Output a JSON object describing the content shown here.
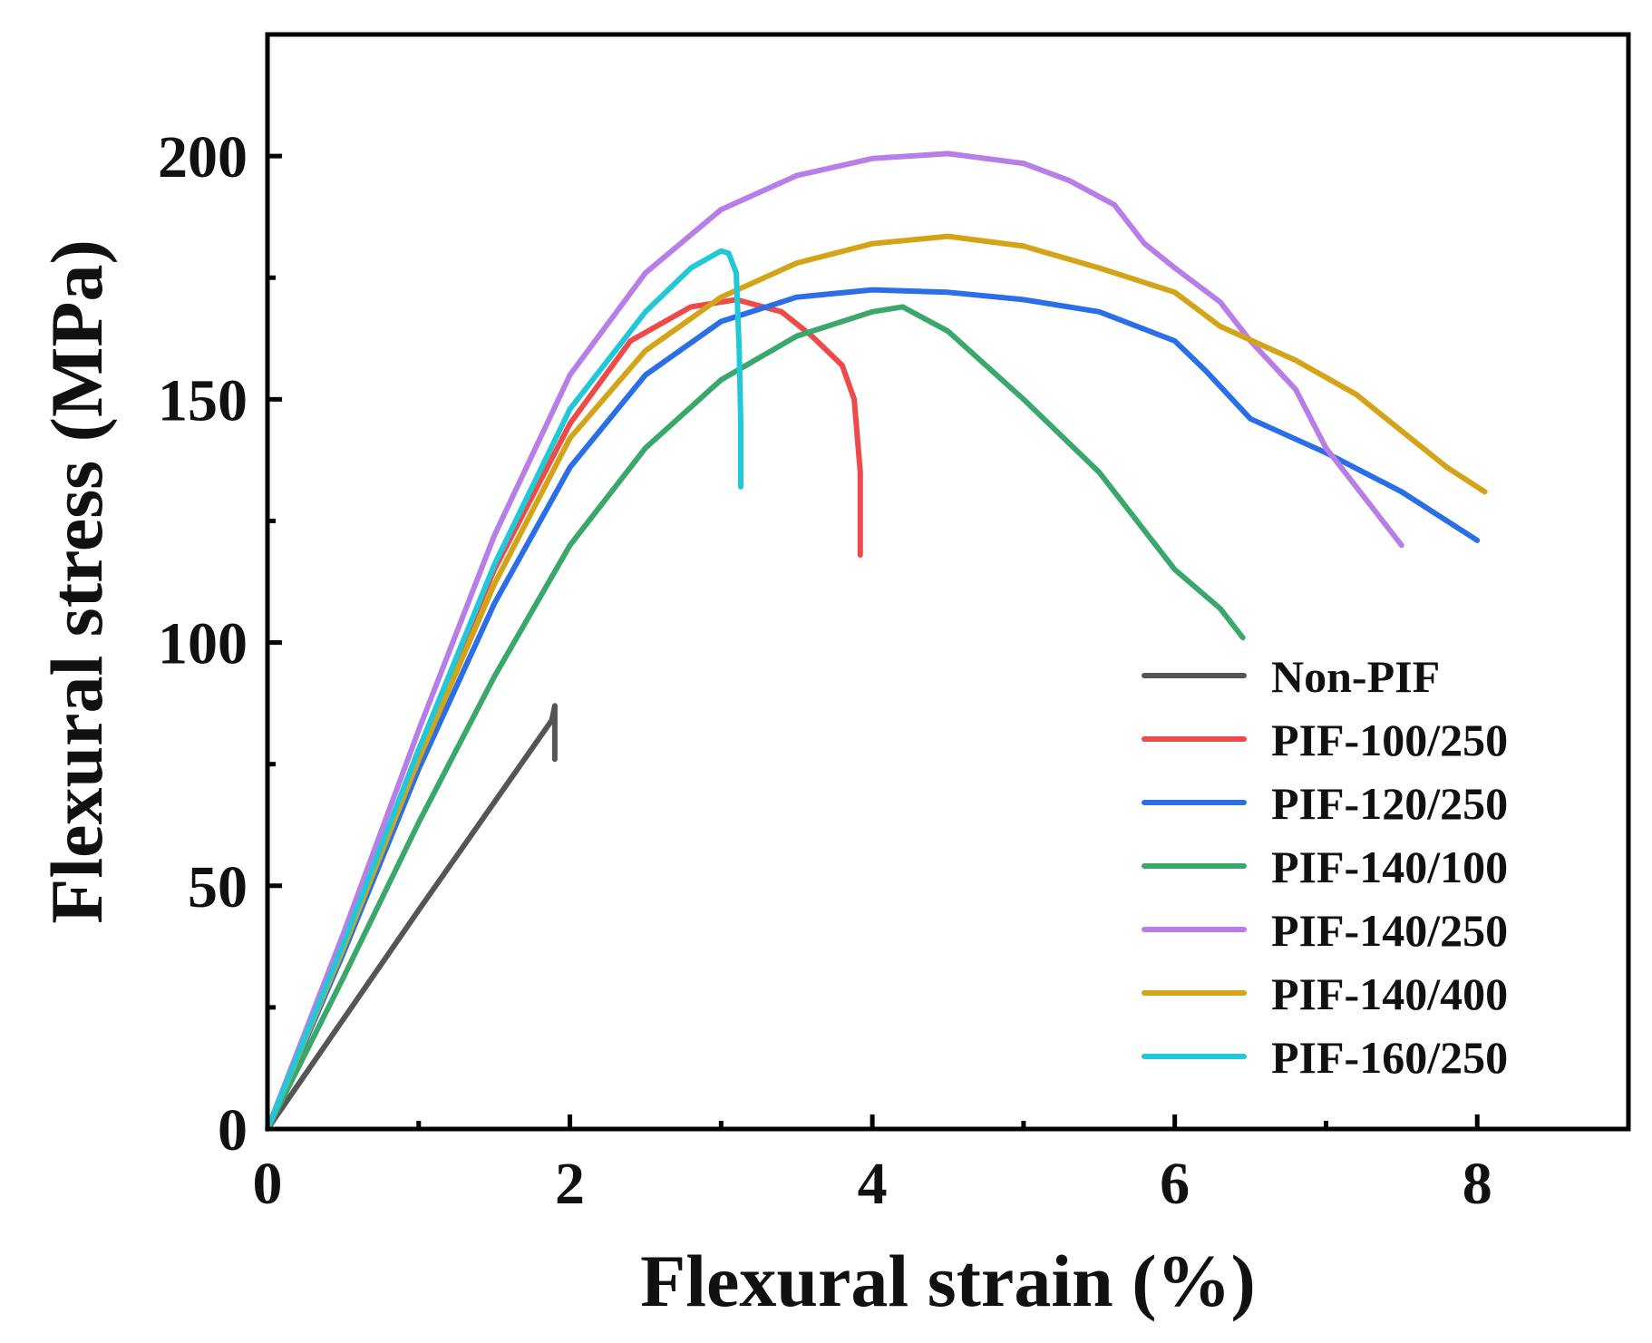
{
  "chart_data": {
    "type": "line",
    "title": "",
    "xlabel": "Flexural strain (%)",
    "ylabel": "Flexural stress (MPa)",
    "xlim": [
      0,
      9
    ],
    "ylim": [
      0,
      225
    ],
    "x_ticks": [
      0,
      2,
      4,
      6,
      8
    ],
    "y_ticks": [
      0,
      50,
      100,
      150,
      200
    ],
    "x_tick_labels": [
      "0",
      "2",
      "4",
      "6",
      "8"
    ],
    "y_tick_labels": [
      "0",
      "50",
      "100",
      "150",
      "200"
    ],
    "grid": false,
    "legend_position": "lower-right",
    "series": [
      {
        "name": "Non-PIF",
        "color": "#555555",
        "points": [
          [
            0,
            0
          ],
          [
            1.0,
            45
          ],
          [
            1.88,
            84
          ],
          [
            1.9,
            87
          ],
          [
            1.9,
            76
          ]
        ]
      },
      {
        "name": "PIF-100/250",
        "color": "#ef4a4a",
        "points": [
          [
            0,
            0
          ],
          [
            0.5,
            38
          ],
          [
            1.0,
            78
          ],
          [
            1.5,
            115
          ],
          [
            2.0,
            145
          ],
          [
            2.4,
            162
          ],
          [
            2.8,
            169
          ],
          [
            3.1,
            170.5
          ],
          [
            3.4,
            168
          ],
          [
            3.6,
            163
          ],
          [
            3.8,
            157
          ],
          [
            3.88,
            150
          ],
          [
            3.92,
            135
          ],
          [
            3.92,
            118
          ]
        ]
      },
      {
        "name": "PIF-120/250",
        "color": "#2a6ee8",
        "points": [
          [
            0,
            0
          ],
          [
            0.5,
            36
          ],
          [
            1.0,
            74
          ],
          [
            1.5,
            108
          ],
          [
            2.0,
            136
          ],
          [
            2.5,
            155
          ],
          [
            3.0,
            166
          ],
          [
            3.5,
            171
          ],
          [
            4.0,
            172.5
          ],
          [
            4.5,
            172
          ],
          [
            5.0,
            170.5
          ],
          [
            5.5,
            168
          ],
          [
            6.0,
            162
          ],
          [
            6.2,
            156
          ],
          [
            6.5,
            146
          ],
          [
            7.0,
            139
          ],
          [
            7.5,
            131
          ],
          [
            8.0,
            121
          ]
        ]
      },
      {
        "name": "PIF-140/100",
        "color": "#3aa86a",
        "points": [
          [
            0,
            0
          ],
          [
            0.5,
            31
          ],
          [
            1.0,
            63
          ],
          [
            1.5,
            93
          ],
          [
            2.0,
            120
          ],
          [
            2.5,
            140
          ],
          [
            3.0,
            154
          ],
          [
            3.5,
            163
          ],
          [
            4.0,
            168
          ],
          [
            4.2,
            169
          ],
          [
            4.5,
            164
          ],
          [
            5.0,
            150
          ],
          [
            5.5,
            135
          ],
          [
            5.8,
            123
          ],
          [
            6.0,
            115
          ],
          [
            6.3,
            107
          ],
          [
            6.45,
            101
          ]
        ]
      },
      {
        "name": "PIF-140/250",
        "color": "#b87ee8",
        "points": [
          [
            0,
            0
          ],
          [
            0.5,
            40
          ],
          [
            1.0,
            82
          ],
          [
            1.5,
            122
          ],
          [
            2.0,
            155
          ],
          [
            2.5,
            176
          ],
          [
            3.0,
            189
          ],
          [
            3.5,
            196
          ],
          [
            4.0,
            199.5
          ],
          [
            4.5,
            200.5
          ],
          [
            5.0,
            198.5
          ],
          [
            5.3,
            195
          ],
          [
            5.6,
            190
          ],
          [
            5.8,
            182
          ],
          [
            6.0,
            177
          ],
          [
            6.3,
            170
          ],
          [
            6.5,
            162
          ],
          [
            6.8,
            152
          ],
          [
            7.0,
            140
          ],
          [
            7.3,
            128
          ],
          [
            7.5,
            120
          ]
        ]
      },
      {
        "name": "PIF-140/400",
        "color": "#d4a418",
        "points": [
          [
            0,
            0
          ],
          [
            0.5,
            37
          ],
          [
            1.0,
            76
          ],
          [
            1.5,
            112
          ],
          [
            2.0,
            142
          ],
          [
            2.5,
            160
          ],
          [
            3.0,
            171
          ],
          [
            3.5,
            178
          ],
          [
            4.0,
            182
          ],
          [
            4.5,
            183.5
          ],
          [
            5.0,
            181.5
          ],
          [
            5.5,
            177
          ],
          [
            6.0,
            172
          ],
          [
            6.3,
            165
          ],
          [
            6.8,
            158
          ],
          [
            7.2,
            151
          ],
          [
            7.6,
            141
          ],
          [
            7.8,
            136
          ],
          [
            8.05,
            131
          ]
        ]
      },
      {
        "name": "PIF-160/250",
        "color": "#21c8d8",
        "points": [
          [
            0,
            0
          ],
          [
            0.5,
            38
          ],
          [
            1.0,
            78
          ],
          [
            1.5,
            116
          ],
          [
            2.0,
            148
          ],
          [
            2.5,
            168
          ],
          [
            2.8,
            177
          ],
          [
            3.0,
            180.5
          ],
          [
            3.05,
            180
          ],
          [
            3.1,
            176
          ],
          [
            3.12,
            160
          ],
          [
            3.13,
            145
          ],
          [
            3.13,
            132
          ]
        ]
      }
    ]
  }
}
